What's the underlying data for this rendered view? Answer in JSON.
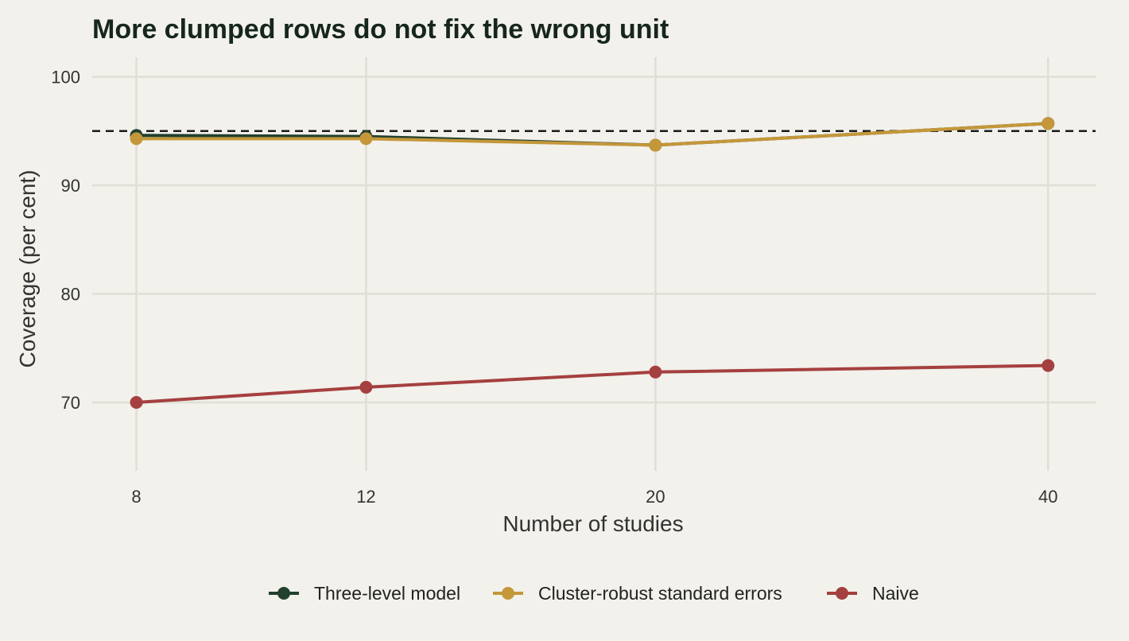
{
  "chart_data": {
    "type": "line",
    "title": "More clumped rows do not fix the wrong unit",
    "xlabel": "Number of studies",
    "ylabel": "Coverage (per cent)",
    "x": [
      8,
      12,
      20,
      40
    ],
    "x_tick_labels": [
      "8",
      "12",
      "20",
      "40"
    ],
    "x_scale": "log",
    "xlim": [
      7.4,
      43.5
    ],
    "ylim": [
      63.7,
      101.8
    ],
    "y_ticks": [
      70,
      80,
      90,
      100
    ],
    "y_tick_labels": [
      "70",
      "80",
      "90",
      "100"
    ],
    "reference_line": {
      "y": 95,
      "style": "dashed"
    },
    "grid": true,
    "legend_position": "bottom",
    "series": [
      {
        "name": "Three-level model",
        "color": "#22402e",
        "values": [
          94.6,
          94.5,
          93.7,
          95.7
        ]
      },
      {
        "name": "Cluster-robust standard errors",
        "color": "#c4973a",
        "values": [
          94.3,
          94.3,
          93.7,
          95.7
        ]
      },
      {
        "name": "Naive",
        "color": "#a54040",
        "values": [
          70.0,
          71.4,
          72.8,
          73.4
        ]
      }
    ]
  }
}
